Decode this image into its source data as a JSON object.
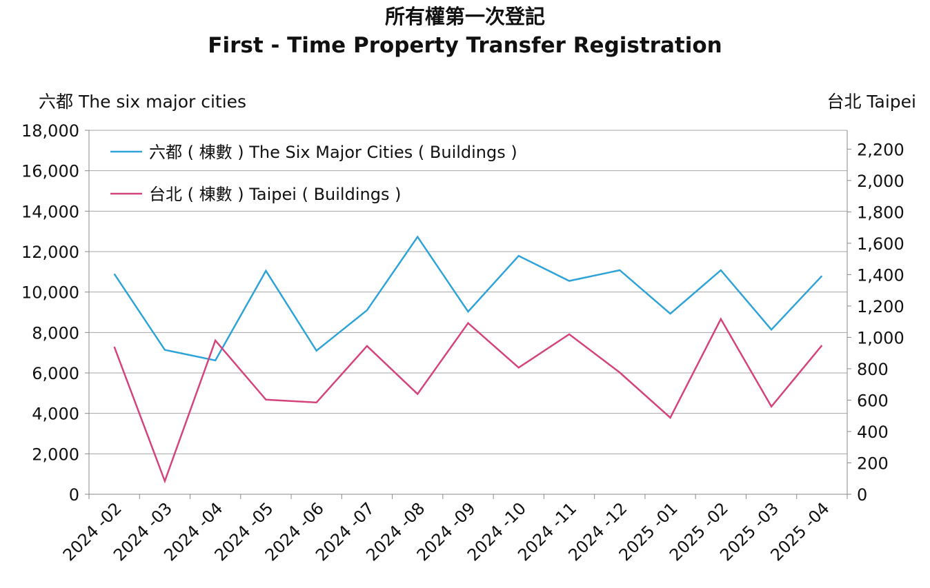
{
  "chart_data": {
    "type": "line",
    "title": "所有權第一次登記",
    "subtitle": "First - Time Property Transfer Registration",
    "ylabel_left": "六都  The six major cities",
    "ylabel_right": "台北 Taipei",
    "categories": [
      "2024 -02",
      "2024 -03",
      "2024 -04",
      "2024 -05",
      "2024 -06",
      "2024 -07",
      "2024 -08",
      "2024 -09",
      "2024 -10",
      "2024 -11",
      "2024 -12",
      "2025 -01",
      "2025 -02",
      "2025 -03",
      "2025 -04"
    ],
    "ylim_left": [
      0,
      18000
    ],
    "yticks_left": [
      "0",
      "2,000",
      "4,000",
      "6,000",
      "8,000",
      "10,000",
      "12,000",
      "14,000",
      "16,000",
      "18,000"
    ],
    "ylim_right": [
      0,
      2320
    ],
    "yticks_right": [
      "0",
      "200",
      "400",
      "600",
      "800",
      "1,000",
      "1,200",
      "1,400",
      "1,600",
      "1,800",
      "2,000",
      "2,200"
    ],
    "grid": true,
    "legend_position": "top-left",
    "series": [
      {
        "name": "六都 ( 棟數 ) The Six Major Cities ( Buildings )",
        "axis": "left",
        "color": "#2ea3d8",
        "values": [
          10900,
          7140,
          6620,
          11050,
          7100,
          9100,
          12730,
          9030,
          11790,
          10550,
          11080,
          8930,
          11080,
          8140,
          10800
        ]
      },
      {
        "name": "台北 ( 棟數 ) Taipei ( Buildings )",
        "axis": "right",
        "color": "#d4437c",
        "values": [
          940,
          84,
          980,
          603,
          585,
          945,
          639,
          1091,
          807,
          1020,
          776,
          488,
          1117,
          559,
          949
        ]
      }
    ]
  }
}
